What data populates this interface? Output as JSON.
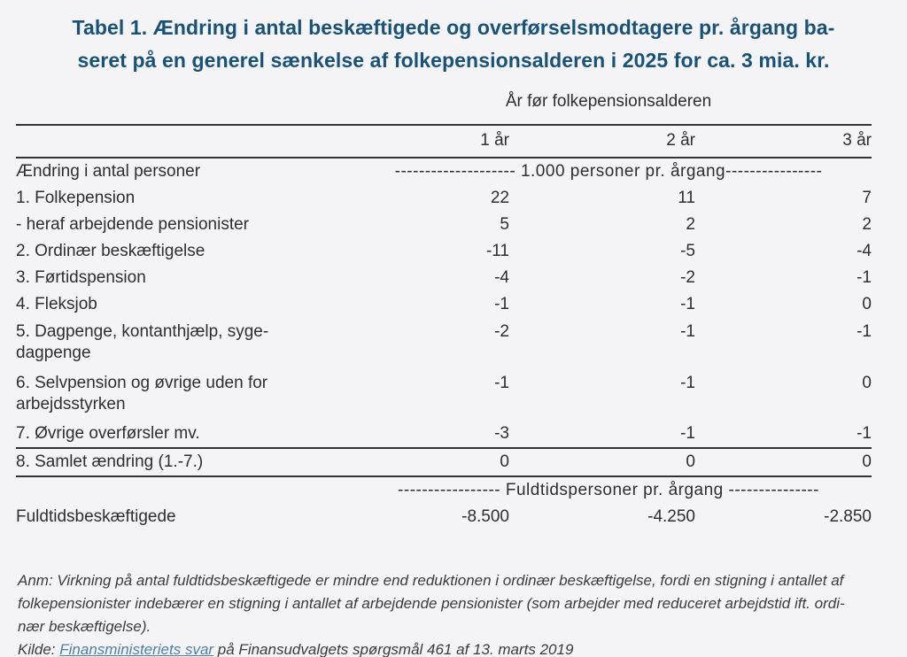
{
  "page": {
    "title_line1": "Tabel 1. Ændring i antal beskæftigede og overførselsmodtagere pr. årgang ba-",
    "title_line2": "seret på en generel sænkelse af folkepensionsalderen i 2025 for ca. 3 mia. kr."
  },
  "table": {
    "super_header": "År før folkepensionsalderen",
    "columns": [
      "1 år",
      "2 år",
      "3 år"
    ],
    "unit_row": {
      "label": "Ændring i antal personer",
      "spanner": "-------------------- 1.000 personer pr. årgang----------------"
    },
    "rows": [
      {
        "label": "1. Folkepension",
        "values": [
          "22",
          "11",
          "7"
        ]
      },
      {
        "label": "- heraf arbejdende pensionister",
        "values": [
          "5",
          "2",
          "2"
        ]
      },
      {
        "label": "2. Ordinær beskæftigelse",
        "values": [
          "-11",
          "-5",
          "-4"
        ]
      },
      {
        "label": "3. Førtidspension",
        "values": [
          "-4",
          "-2",
          "-1"
        ]
      },
      {
        "label": "4. Fleksjob",
        "values": [
          "-1",
          "-1",
          "0"
        ]
      },
      {
        "label": "5. Dagpenge, kontanthjælp, syge-\ndagpenge",
        "values": [
          "-2",
          "-1",
          "-1"
        ]
      },
      {
        "label": "6. Selvpension og øvrige uden for\narbejdsstyrken",
        "values": [
          "-1",
          "-1",
          "0"
        ]
      },
      {
        "label": "7. Øvrige overførsler mv.",
        "values": [
          "-3",
          "-1",
          "-1"
        ]
      },
      {
        "label": "8. Samlet ændring (1.-7.)",
        "values": [
          "0",
          "0",
          "0"
        ]
      }
    ],
    "fulltime_spanner": "----------------- Fuldtidspersoner pr. årgang ---------------",
    "fulltime_row": {
      "label": "Fuldtidsbeskæftigede",
      "values": [
        "-8.500",
        "-4.250",
        "-2.850"
      ]
    }
  },
  "footnotes": {
    "anm": "Anm: Virkning på antal fuldtidsbeskæftigede er mindre end reduktionen i ordinær beskæftigelse, fordi en stigning i antallet af\nfolkepensionister indebærer en stigning i antallet af arbejdende pensionister (som arbejder med reduceret arbejdstid ift. ordi-\nnær beskæftigelse).",
    "kilde_prefix": "Kilde: ",
    "kilde_link": "Finansministeriets svar",
    "kilde_suffix": " på Finansudvalgets spørgsmål 461 af 13. marts 2019"
  },
  "colors": {
    "title": "#195278",
    "link": "#4a7fa8",
    "text": "#2e2e2e",
    "rule": "#333333",
    "background": "#f4f4f6"
  }
}
